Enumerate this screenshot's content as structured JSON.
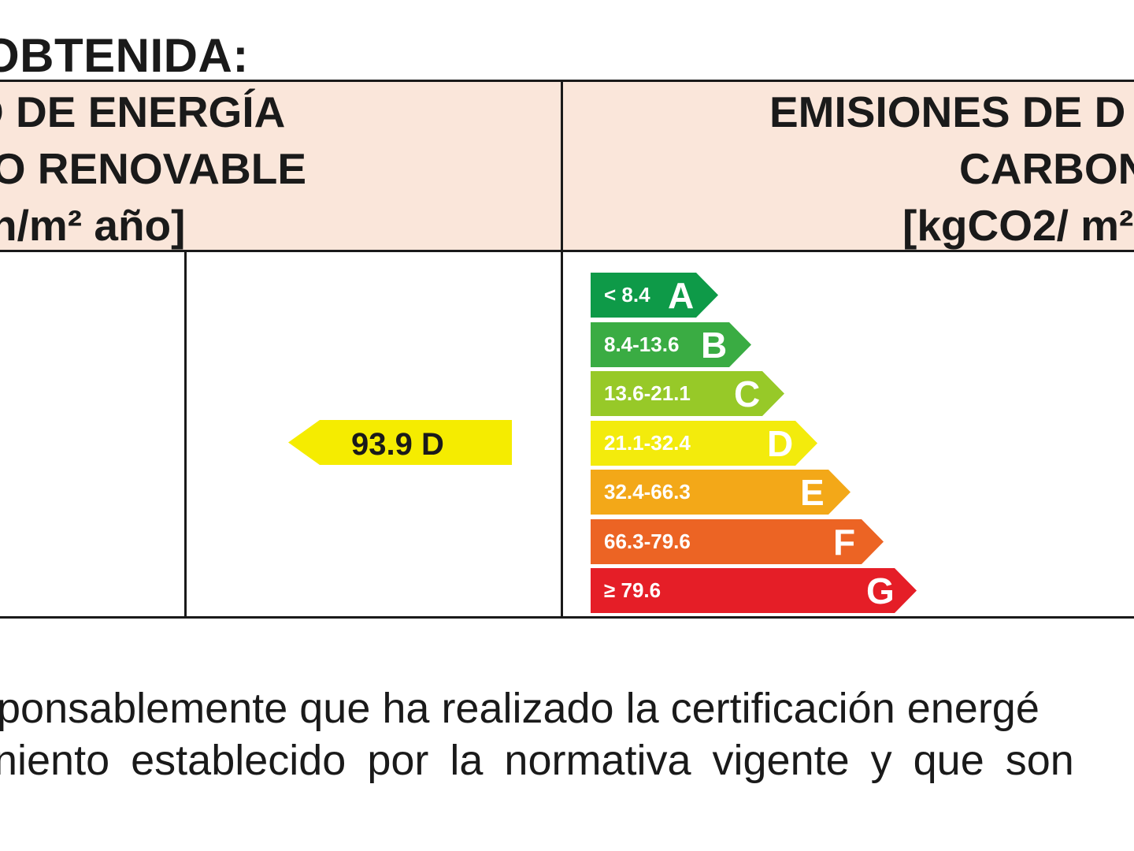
{
  "section_title": "OBTENIDA:",
  "left_header": {
    "lines": [
      "O DE ENERGÍA",
      "NO RENOVABLE",
      "n/m² año]"
    ]
  },
  "right_header": {
    "lines": [
      "EMISIONES DE D",
      "CARBON",
      "[kgCO2/ m²"
    ]
  },
  "rating": {
    "label": "93.9 D",
    "color": "#f5ec00"
  },
  "scale": [
    {
      "range": "< 8.4",
      "letter": "A",
      "color": "#0e9a48"
    },
    {
      "range": "8.4-13.6",
      "letter": "B",
      "color": "#3aac43"
    },
    {
      "range": "13.6-21.1",
      "letter": "C",
      "color": "#97c928"
    },
    {
      "range": "21.1-32.4",
      "letter": "D",
      "color": "#f3eb0c"
    },
    {
      "range": "32.4-66.3",
      "letter": "E",
      "color": "#f3a818"
    },
    {
      "range": "66.3-79.6",
      "letter": "F",
      "color": "#ec6424"
    },
    {
      "range": "≥ 79.6",
      "letter": "G",
      "color": "#e51e27"
    }
  ],
  "footer": {
    "lines": [
      "ponsablemente que ha realizado la certificación energé",
      "niento establecido por la normativa vigente y que son"
    ]
  }
}
